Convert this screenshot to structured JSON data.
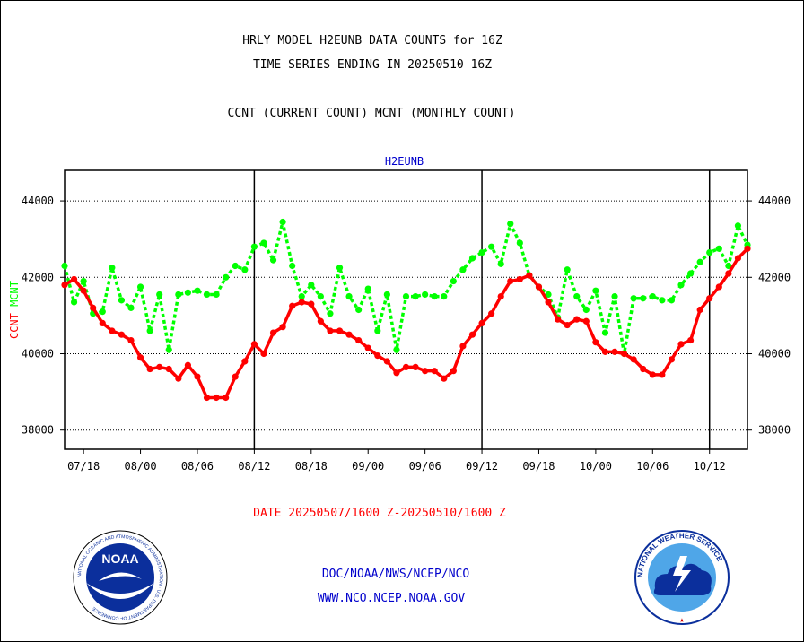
{
  "header": {
    "title_line1": "HRLY MODEL H2EUNB DATA COUNTS for 16Z",
    "title_line2": "TIME SERIES ENDING IN 20250510 16Z",
    "subtitle": "CCNT (CURRENT COUNT) MCNT (MONTHLY COUNT)"
  },
  "footer": {
    "date_range": "DATE 20250507/1600 Z-20250510/1600 Z",
    "link1": "DOC/NOAA/NWS/NCEP/NCO",
    "link2": "WWW.NCO.NCEP.NOAA.GOV"
  },
  "logos": {
    "left_text": "NOAA",
    "left_ring_text": "NATIONAL OCEANIC AND ATMOSPHERIC ADMINISTRATION · U.S. DEPARTMENT OF COMMERCE",
    "right_ring_text": "NATIONAL WEATHER SERVICE"
  },
  "colors": {
    "ccnt": "#ff0000",
    "mcnt": "#00ff00",
    "panel_title": "#0000cc",
    "axis": "#000000"
  },
  "chart_data": {
    "type": "line",
    "panel_title": "H2EUNB",
    "ylabel_left": "CCNT",
    "ylabel_right": "MCNT",
    "ylim": [
      37500,
      44800
    ],
    "yticks": [
      38000,
      40000,
      42000,
      44000
    ],
    "ytick_labels": [
      "38000",
      "40000",
      "42000",
      "44000"
    ],
    "grid": "dotted horizontal at y ticks",
    "x_range_hours": [
      0,
      72
    ],
    "xtick_positions": [
      2,
      8,
      14,
      20,
      26,
      32,
      38,
      44,
      50,
      56,
      62,
      68
    ],
    "xtick_labels": [
      "07/18",
      "08/00",
      "08/06",
      "08/12",
      "08/18",
      "09/00",
      "09/06",
      "09/12",
      "09/18",
      "10/00",
      "10/06",
      "10/12"
    ],
    "day_boundaries_hours": [
      20,
      44,
      68
    ],
    "series": [
      {
        "name": "CCNT",
        "color": "#ff0000",
        "values": [
          41800,
          41950,
          41650,
          41200,
          40800,
          40600,
          40500,
          40350,
          39900,
          39600,
          39650,
          39600,
          39350,
          39700,
          39400,
          38850,
          38850,
          38850,
          39400,
          39800,
          40250,
          40000,
          40550,
          40700,
          41250,
          41350,
          41300,
          40850,
          40600,
          40600,
          40500,
          40350,
          40150,
          39950,
          39800,
          39500,
          39650,
          39650,
          39550,
          39550,
          39350,
          39550,
          40200,
          40500,
          40800,
          41050,
          41500,
          41900,
          41950,
          42050,
          41750,
          41350,
          40900,
          40750,
          40900,
          40850,
          40300,
          40050,
          40050,
          40000,
          39850,
          39600,
          39450,
          39450,
          39850,
          40250,
          40350,
          41150,
          41450,
          41750,
          42100,
          42500,
          42750
        ]
      },
      {
        "name": "MCNT",
        "color": "#00ff00",
        "values": [
          42300,
          41350,
          41900,
          41050,
          41100,
          42250,
          41400,
          41200,
          41750,
          40600,
          41550,
          40100,
          41550,
          41600,
          41650,
          41550,
          41550,
          42000,
          42300,
          42200,
          42800,
          42900,
          42450,
          43450,
          42300,
          41500,
          41800,
          41500,
          41050,
          42250,
          41500,
          41150,
          41700,
          40600,
          41550,
          40100,
          41500,
          41500,
          41550,
          41500,
          41500,
          41900,
          42200,
          42500,
          42650,
          42800,
          42350,
          43400,
          42900,
          42050,
          41750,
          41550,
          40950,
          42200,
          41500,
          41150,
          41650,
          40550,
          41500,
          40000,
          41450,
          41450,
          41500,
          41400,
          41400,
          41800,
          42100,
          42400,
          42650,
          42750,
          42300,
          43350,
          42850
        ]
      }
    ]
  }
}
